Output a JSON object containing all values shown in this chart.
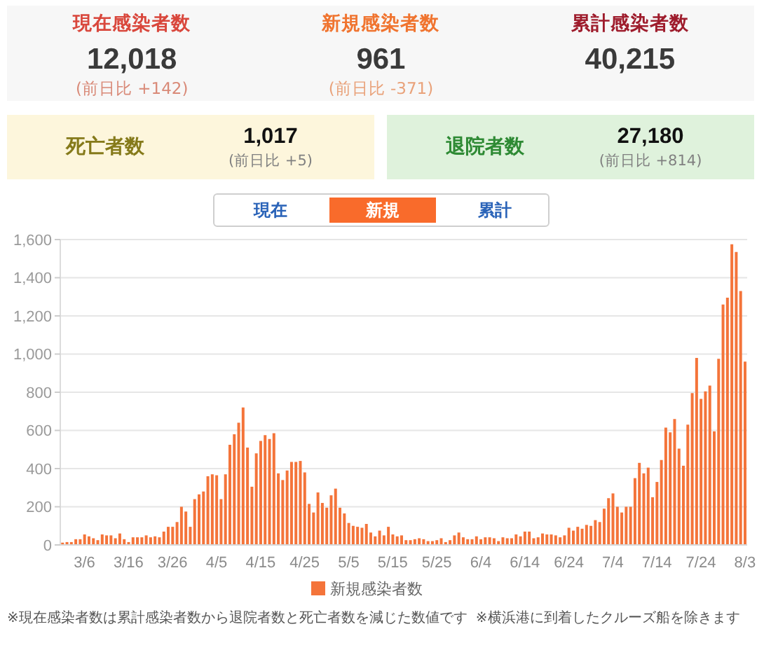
{
  "chart_data": [
    {
      "type": "other",
      "categories": [
        "現在感染者数",
        "新規感染者数",
        "累計感染者数",
        "死亡者数",
        "退院者数"
      ],
      "series": [
        {
          "colors": [
            "#f7f7f7",
            "#f7f7f7",
            "#f7f7f7",
            "#fdf6dc",
            "#dff2dc"
          ],
          "values": [
            12018,
            961,
            40215,
            1017,
            27180
          ],
          "value_labels": [
            "12,018",
            "961",
            "40,215",
            "1,017",
            "27,180"
          ]
        },
        {
          "values": [
            142,
            -371,
            null,
            5,
            814
          ],
          "value_labels": [
            "(前日比 +142)",
            "(前日比 -371)",
            null,
            "(前日比 +5)",
            "(前日比 +814)"
          ]
        }
      ],
      "annotations": [
        "現在",
        "新規",
        "累計"
      ]
    },
    {
      "type": "bar",
      "categories": [
        null,
        null,
        null,
        null,
        null,
        "3/6",
        null,
        null,
        null,
        null,
        null,
        null,
        null,
        null,
        null,
        "3/16",
        null,
        null,
        null,
        null,
        null,
        null,
        null,
        null,
        null,
        "3/26",
        null,
        null,
        null,
        null,
        null,
        null,
        null,
        null,
        null,
        "4/5",
        null,
        null,
        null,
        null,
        null,
        null,
        null,
        null,
        null,
        "4/15",
        null,
        null,
        null,
        null,
        null,
        null,
        null,
        null,
        null,
        "4/25",
        null,
        null,
        null,
        null,
        null,
        null,
        null,
        null,
        null,
        "5/5",
        null,
        null,
        null,
        null,
        null,
        null,
        null,
        null,
        null,
        "5/15",
        null,
        null,
        null,
        null,
        null,
        null,
        null,
        null,
        null,
        "5/25",
        null,
        null,
        null,
        null,
        null,
        null,
        null,
        null,
        null,
        "6/4",
        null,
        null,
        null,
        null,
        null,
        null,
        null,
        null,
        null,
        "6/14",
        null,
        null,
        null,
        null,
        null,
        null,
        null,
        null,
        null,
        "6/24",
        null,
        null,
        null,
        null,
        null,
        null,
        null,
        null,
        null,
        "7/4",
        null,
        null,
        null,
        null,
        null,
        null,
        null,
        null,
        null,
        "7/14",
        null,
        null,
        null,
        null,
        null,
        null,
        null,
        null,
        null,
        "7/24",
        null,
        null,
        null,
        null,
        null,
        null,
        null,
        null,
        null,
        "8/3"
      ],
      "series": [
        {
          "name": "新規感染者数",
          "color": "#f4743a",
          "values": [
            12,
            15,
            15,
            30,
            30,
            55,
            45,
            35,
            25,
            55,
            50,
            50,
            35,
            60,
            30,
            15,
            40,
            40,
            40,
            50,
            40,
            45,
            40,
            70,
            95,
            95,
            120,
            200,
            175,
            95,
            240,
            265,
            280,
            360,
            370,
            365,
            240,
            370,
            525,
            580,
            640,
            720,
            510,
            305,
            480,
            545,
            575,
            555,
            585,
            375,
            340,
            390,
            435,
            435,
            440,
            380,
            215,
            170,
            275,
            220,
            195,
            260,
            295,
            195,
            165,
            115,
            100,
            95,
            90,
            110,
            65,
            45,
            75,
            50,
            95,
            55,
            45,
            50,
            25,
            25,
            30,
            35,
            30,
            20,
            20,
            25,
            35,
            15,
            25,
            50,
            65,
            40,
            30,
            30,
            45,
            30,
            40,
            40,
            35,
            20,
            40,
            35,
            35,
            55,
            45,
            70,
            70,
            35,
            40,
            60,
            55,
            55,
            50,
            40,
            50,
            90,
            75,
            95,
            85,
            105,
            100,
            130,
            120,
            190,
            245,
            270,
            200,
            170,
            200,
            200,
            350,
            430,
            375,
            405,
            250,
            330,
            445,
            615,
            590,
            660,
            505,
            415,
            630,
            795,
            980,
            765,
            805,
            835,
            595,
            975,
            1260,
            1295,
            1575,
            1535,
            1330,
            961
          ]
        }
      ],
      "ylim": [
        0,
        1600
      ],
      "yticks": [
        0,
        200,
        400,
        600,
        800,
        {
          "value": 1000,
          "label": "1,000"
        },
        {
          "value": 1200,
          "label": "1,200"
        },
        {
          "value": 1400,
          "label": "1,400"
        },
        {
          "value": 1600,
          "label": "1,600"
        }
      ],
      "grid": "y",
      "legend": "bottom",
      "annotations": [
        "※現在感染者数は累計感染者数から退院者数と死亡者数を減じた数値です",
        "※横浜港に到着したクルーズ船を除きます"
      ]
    }
  ]
}
